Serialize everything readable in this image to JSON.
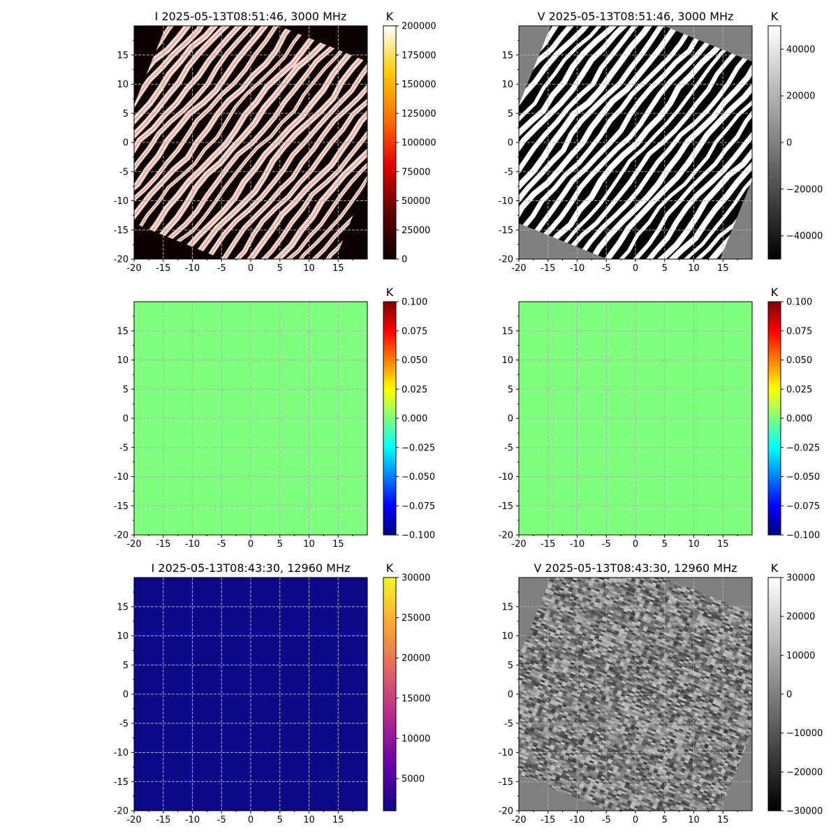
{
  "colorbar_unit": "K",
  "chart_data": [
    {
      "type": "heatmap",
      "title": "I 2025-05-13T08:51:46, 3000 MHz",
      "x_ticks": [
        "-20",
        "-15",
        "-10",
        "-5",
        "0",
        "5",
        "10",
        "15"
      ],
      "y_ticks": [
        "-20",
        "-15",
        "-10",
        "-5",
        "0",
        "5",
        "10",
        "15"
      ],
      "xlim": [
        -20,
        20
      ],
      "ylim": [
        -20,
        20
      ],
      "grid": true,
      "pattern": "striped",
      "colormap": "hot",
      "background_color": "#0d0202",
      "colorbar": {
        "label": "K",
        "range": [
          0,
          200000
        ],
        "ticks": [
          "0",
          "25000",
          "50000",
          "75000",
          "100000",
          "125000",
          "150000",
          "175000",
          "200000"
        ],
        "stops": [
          "#0a0000",
          "#600000",
          "#e00000",
          "#ff7000",
          "#ffcc00",
          "#ffffff"
        ]
      }
    },
    {
      "type": "heatmap",
      "title": "V 2025-05-13T08:51:46, 3000 MHz",
      "x_ticks": [
        "-20",
        "-15",
        "-10",
        "-5",
        "0",
        "5",
        "10",
        "15"
      ],
      "y_ticks": [
        "-20",
        "-15",
        "-10",
        "-5",
        "0",
        "5",
        "10",
        "15"
      ],
      "xlim": [
        -20,
        20
      ],
      "ylim": [
        -20,
        20
      ],
      "grid": true,
      "pattern": "striped",
      "colormap": "gray",
      "background_color": "#808080",
      "colorbar": {
        "label": "K",
        "range": [
          -50000,
          50000
        ],
        "ticks": [
          "−40000",
          "−20000",
          "0",
          "20000",
          "40000"
        ],
        "stops": [
          "#000000",
          "#ffffff"
        ]
      }
    },
    {
      "type": "heatmap",
      "title": "",
      "x_ticks": [
        "-20",
        "-15",
        "-10",
        "-5",
        "0",
        "5",
        "10",
        "15"
      ],
      "y_ticks": [
        "-20",
        "-15",
        "-10",
        "-5",
        "0",
        "5",
        "10",
        "15"
      ],
      "xlim": [
        -20,
        20
      ],
      "ylim": [
        -20,
        20
      ],
      "grid": true,
      "pattern": "uniform",
      "colormap": "jet",
      "fill_color": "#80ff80",
      "uniform_value": 0,
      "colorbar": {
        "label": "K",
        "range": [
          -0.1,
          0.1
        ],
        "ticks": [
          "−0.100",
          "−0.075",
          "−0.050",
          "−0.025",
          "0.000",
          "0.025",
          "0.050",
          "0.075",
          "0.100"
        ],
        "stops": [
          "#00007f",
          "#0000ff",
          "#007fff",
          "#00ffff",
          "#7fff7f",
          "#ffff00",
          "#ff7f00",
          "#ff0000",
          "#7f0000"
        ]
      }
    },
    {
      "type": "heatmap",
      "title": "",
      "x_ticks": [
        "-20",
        "-15",
        "-10",
        "-5",
        "0",
        "5",
        "10",
        "15"
      ],
      "y_ticks": [
        "-20",
        "-15",
        "-10",
        "-5",
        "0",
        "5",
        "10",
        "15"
      ],
      "xlim": [
        -20,
        20
      ],
      "ylim": [
        -20,
        20
      ],
      "grid": true,
      "pattern": "uniform",
      "colormap": "jet",
      "fill_color": "#80ff80",
      "uniform_value": 0,
      "colorbar": {
        "label": "K",
        "range": [
          -0.1,
          0.1
        ],
        "ticks": [
          "−0.100",
          "−0.075",
          "−0.050",
          "−0.025",
          "0.000",
          "0.025",
          "0.050",
          "0.075",
          "0.100"
        ],
        "stops": [
          "#00007f",
          "#0000ff",
          "#007fff",
          "#00ffff",
          "#7fff7f",
          "#ffff00",
          "#ff7f00",
          "#ff0000",
          "#7f0000"
        ]
      }
    },
    {
      "type": "heatmap",
      "title": "I 2025-05-13T08:43:30, 12960 MHz",
      "x_ticks": [
        "-20",
        "-15",
        "-10",
        "-5",
        "0",
        "5",
        "10",
        "15"
      ],
      "y_ticks": [
        "-20",
        "-15",
        "-10",
        "-5",
        "0",
        "5",
        "10",
        "15"
      ],
      "xlim": [
        -20,
        20
      ],
      "ylim": [
        -20,
        20
      ],
      "grid": true,
      "pattern": "uniform",
      "colormap": "plasma",
      "fill_color": "#0d0887",
      "colorbar": {
        "label": "K",
        "range": [
          1000,
          30000
        ],
        "ticks": [
          "5000",
          "10000",
          "15000",
          "20000",
          "25000",
          "30000"
        ],
        "stops": [
          "#0d0887",
          "#6a00a8",
          "#b12a90",
          "#e16462",
          "#fca636",
          "#f0f921"
        ]
      }
    },
    {
      "type": "heatmap",
      "title": "V 2025-05-13T08:43:30, 12960 MHz",
      "x_ticks": [
        "-20",
        "-15",
        "-10",
        "-5",
        "0",
        "5",
        "10",
        "15"
      ],
      "y_ticks": [
        "-20",
        "-15",
        "-10",
        "-5",
        "0",
        "5",
        "10",
        "15"
      ],
      "xlim": [
        -20,
        20
      ],
      "ylim": [
        -20,
        20
      ],
      "grid": true,
      "pattern": "noise",
      "colormap": "gray",
      "background_color": "#808080",
      "colorbar": {
        "label": "K",
        "range": [
          -30000,
          30000
        ],
        "ticks": [
          "−30000",
          "−20000",
          "−10000",
          "0",
          "10000",
          "20000",
          "30000"
        ],
        "stops": [
          "#000000",
          "#ffffff"
        ]
      }
    }
  ]
}
